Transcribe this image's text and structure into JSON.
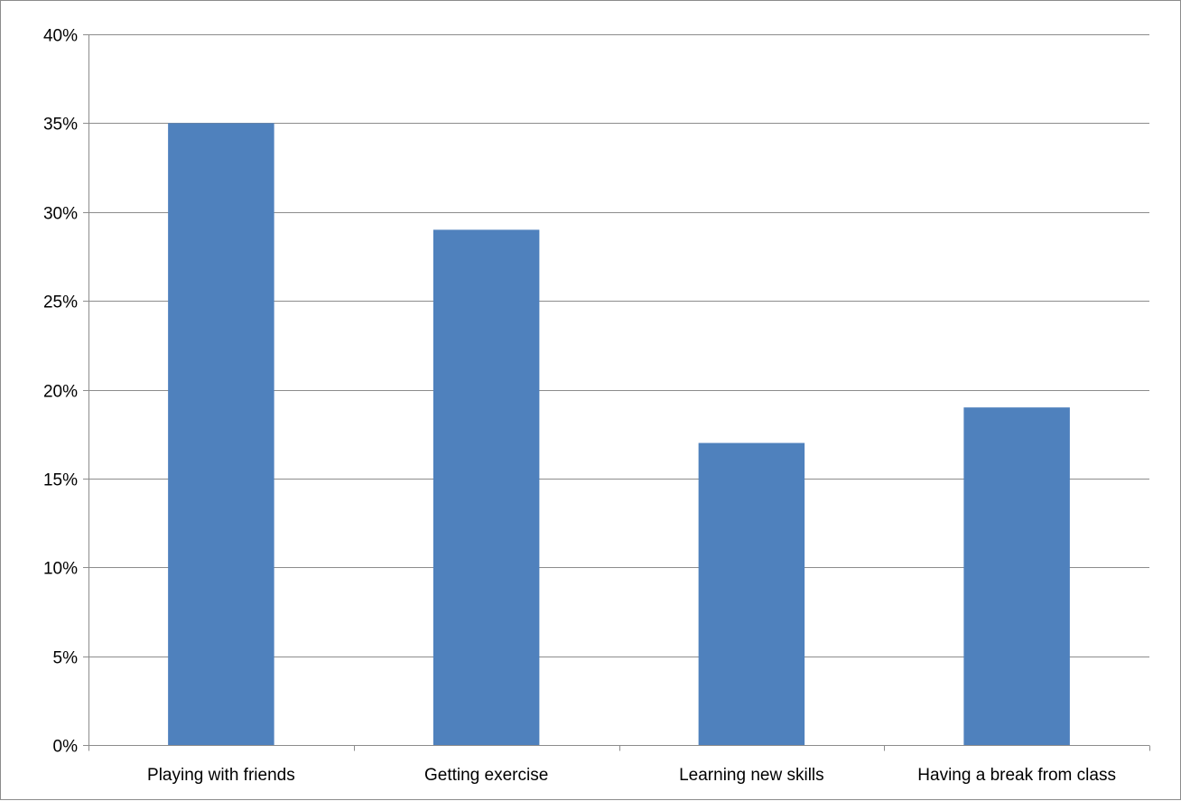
{
  "chart_data": {
    "type": "bar",
    "title": "",
    "xlabel": "",
    "ylabel": "",
    "categories": [
      "Playing with friends",
      "Getting exercise",
      "Learning new skills",
      "Having a break from class"
    ],
    "values": [
      35,
      29,
      17,
      19
    ],
    "ylim": [
      0,
      40
    ],
    "yticks": [
      0,
      5,
      10,
      15,
      20,
      25,
      30,
      35,
      40
    ],
    "ytick_labels": [
      "0%",
      "5%",
      "10%",
      "15%",
      "20%",
      "25%",
      "30%",
      "35%",
      "40%"
    ],
    "value_unit": "%",
    "bar_color": "#4f81bd",
    "gridline_color": "#8c8c8c",
    "grid": true,
    "legend": "none"
  }
}
